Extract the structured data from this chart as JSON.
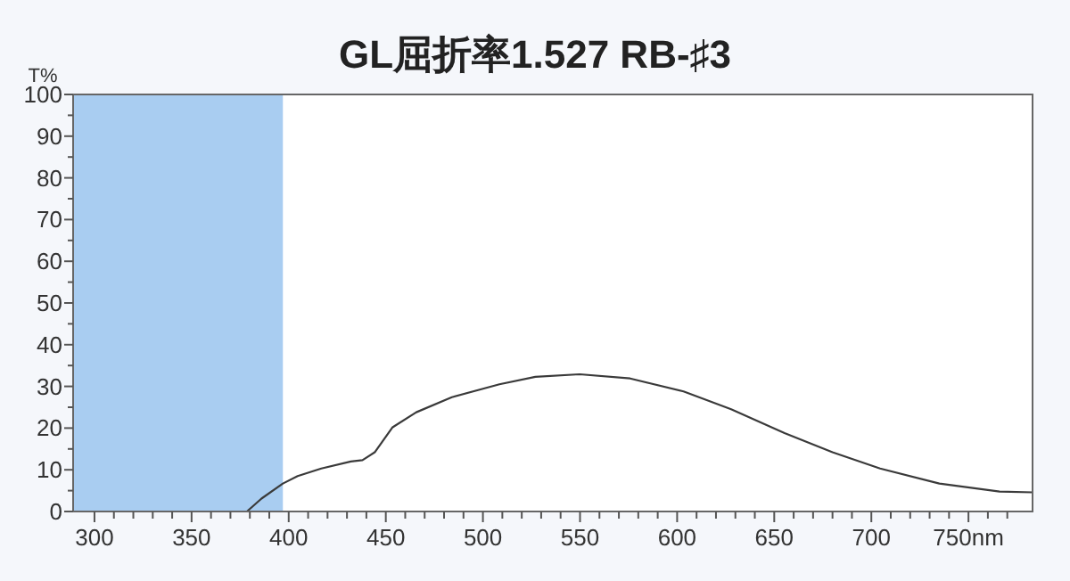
{
  "chart_data": {
    "type": "line",
    "title": "GL屈折率1.527 RB-♯3",
    "ylabel": "T%",
    "x": [
      378.5,
      386,
      397,
      404.6,
      416.8,
      432,
      438,
      444.3,
      453.5,
      465.7,
      484,
      508.5,
      527,
      549.8,
      575.8,
      603.3,
      627.8,
      655.3,
      680,
      704.5,
      735,
      766,
      783
    ],
    "series": [
      {
        "color": "#3a3a3a",
        "values": [
          0,
          3.1,
          6.7,
          8.5,
          10.3,
          12,
          12.3,
          14.2,
          20.2,
          23.8,
          27.4,
          30.5,
          32.3,
          32.9,
          31.9,
          28.8,
          24.5,
          18.8,
          14.2,
          10.3,
          6.7,
          4.8,
          4.6
        ]
      }
    ],
    "xlim": [
      289,
      783
    ],
    "ylim": [
      0,
      100
    ],
    "xticks": [
      300,
      {
        "value": 310,
        "label": null
      },
      {
        "value": 320,
        "label": null
      },
      {
        "value": 330,
        "label": null
      },
      {
        "value": 340,
        "label": null
      },
      350,
      {
        "value": 360,
        "label": null
      },
      {
        "value": 370,
        "label": null
      },
      {
        "value": 380,
        "label": null
      },
      {
        "value": 390,
        "label": null
      },
      400,
      {
        "value": 410,
        "label": null
      },
      {
        "value": 420,
        "label": null
      },
      {
        "value": 430,
        "label": null
      },
      {
        "value": 440,
        "label": null
      },
      450,
      {
        "value": 460,
        "label": null
      },
      {
        "value": 470,
        "label": null
      },
      {
        "value": 480,
        "label": null
      },
      {
        "value": 490,
        "label": null
      },
      500,
      {
        "value": 510,
        "label": null
      },
      {
        "value": 520,
        "label": null
      },
      {
        "value": 530,
        "label": null
      },
      {
        "value": 540,
        "label": null
      },
      550,
      {
        "value": 560,
        "label": null
      },
      {
        "value": 570,
        "label": null
      },
      {
        "value": 580,
        "label": null
      },
      {
        "value": 590,
        "label": null
      },
      600,
      {
        "value": 610,
        "label": null
      },
      {
        "value": 620,
        "label": null
      },
      {
        "value": 630,
        "label": null
      },
      {
        "value": 640,
        "label": null
      },
      650,
      {
        "value": 660,
        "label": null
      },
      {
        "value": 670,
        "label": null
      },
      {
        "value": 680,
        "label": null
      },
      {
        "value": 690,
        "label": null
      },
      700,
      {
        "value": 710,
        "label": null
      },
      {
        "value": 720,
        "label": null
      },
      {
        "value": 730,
        "label": null
      },
      {
        "value": 740,
        "label": null
      },
      {
        "value": 750,
        "label": "750nm"
      },
      {
        "value": 760,
        "label": null
      },
      {
        "value": 770,
        "label": null
      }
    ],
    "yticks": [
      0,
      {
        "value": 5,
        "label": null
      },
      10,
      {
        "value": 15,
        "label": null
      },
      20,
      {
        "value": 25,
        "label": null
      },
      30,
      {
        "value": 35,
        "label": null
      },
      40,
      {
        "value": 45,
        "label": null
      },
      50,
      {
        "value": 55,
        "label": null
      },
      60,
      {
        "value": 65,
        "label": null
      },
      70,
      {
        "value": 75,
        "label": null
      },
      80,
      {
        "value": 85,
        "label": null
      },
      90,
      {
        "value": 95,
        "label": null
      },
      100
    ],
    "bands": [
      {
        "axis": "x",
        "from": 289,
        "to": 397,
        "color": "#a9cdf1"
      }
    ],
    "grid": false
  }
}
